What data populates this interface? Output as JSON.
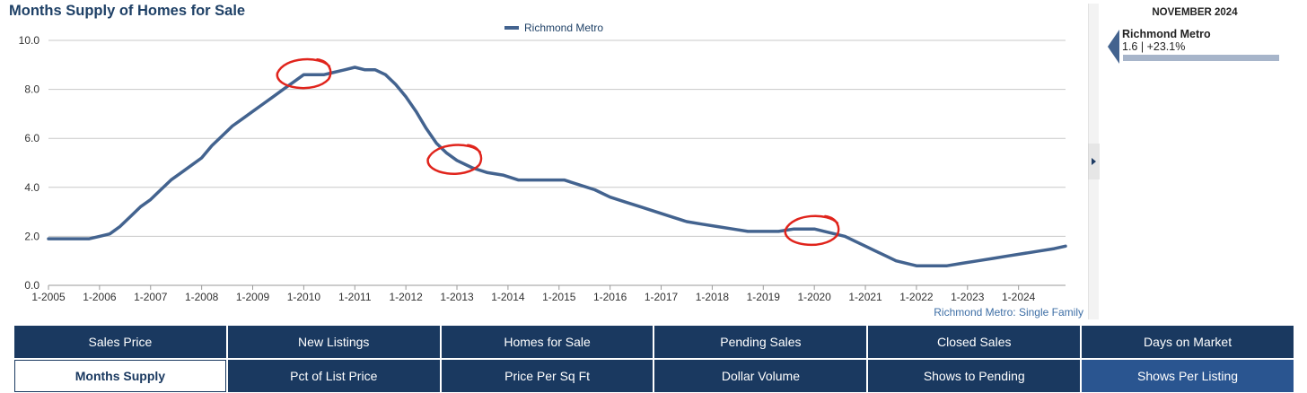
{
  "title": "Months Supply of Homes for Sale",
  "footer_note": "Richmond Metro: Single Family",
  "side_panel": {
    "date": "NOVEMBER 2024",
    "name": "Richmond Metro",
    "value": "1.6 | +23.1%",
    "marker_color": "#43638f"
  },
  "tabs": [
    {
      "label": "Sales Price",
      "state": "normal"
    },
    {
      "label": "New Listings",
      "state": "normal"
    },
    {
      "label": "Homes for Sale",
      "state": "normal"
    },
    {
      "label": "Pending Sales",
      "state": "normal"
    },
    {
      "label": "Closed Sales",
      "state": "normal"
    },
    {
      "label": "Days on Market",
      "state": "normal"
    },
    {
      "label": "Months Supply",
      "state": "active"
    },
    {
      "label": "Pct of List Price",
      "state": "normal"
    },
    {
      "label": "Price Per Sq Ft",
      "state": "normal"
    },
    {
      "label": "Dollar Volume",
      "state": "normal"
    },
    {
      "label": "Shows to Pending",
      "state": "normal"
    },
    {
      "label": "Shows Per Listing",
      "state": "highlight"
    }
  ],
  "chart_data": {
    "type": "line",
    "title": "Months Supply of Homes for Sale",
    "xlabel": "",
    "ylabel": "",
    "xlim": [
      2005.0,
      2024.92
    ],
    "ylim": [
      0,
      10
    ],
    "yticks": [
      0,
      2,
      4,
      6,
      8,
      10
    ],
    "ytick_labels": [
      "0.0",
      "2.0",
      "4.0",
      "6.0",
      "8.0",
      "10.0"
    ],
    "xticks": [
      2005,
      2006,
      2007,
      2008,
      2009,
      2010,
      2011,
      2012,
      2013,
      2014,
      2015,
      2016,
      2017,
      2018,
      2019,
      2020,
      2021,
      2022,
      2023,
      2024
    ],
    "xtick_labels": [
      "1-2005",
      "1-2006",
      "1-2007",
      "1-2008",
      "1-2009",
      "1-2010",
      "1-2011",
      "1-2012",
      "1-2013",
      "1-2014",
      "1-2015",
      "1-2016",
      "1-2017",
      "1-2018",
      "1-2019",
      "1-2020",
      "1-2021",
      "1-2022",
      "1-2023",
      "1-2024"
    ],
    "grid": "horizontal",
    "legend": "top-center",
    "series": [
      {
        "name": "Richmond Metro",
        "color": "#43638f",
        "x": [
          2005.0,
          2005.5,
          2005.8,
          2006.0,
          2006.2,
          2006.4,
          2006.6,
          2006.8,
          2007.0,
          2007.2,
          2007.4,
          2007.6,
          2007.8,
          2008.0,
          2008.2,
          2008.4,
          2008.6,
          2008.8,
          2009.0,
          2009.2,
          2009.4,
          2009.6,
          2009.8,
          2010.0,
          2010.2,
          2010.4,
          2010.6,
          2010.8,
          2011.0,
          2011.2,
          2011.4,
          2011.6,
          2011.8,
          2012.0,
          2012.2,
          2012.4,
          2012.6,
          2012.8,
          2013.0,
          2013.3,
          2013.6,
          2013.9,
          2014.2,
          2014.5,
          2014.8,
          2015.1,
          2015.4,
          2015.7,
          2016.0,
          2016.3,
          2016.6,
          2016.9,
          2017.2,
          2017.5,
          2017.8,
          2018.1,
          2018.4,
          2018.7,
          2019.0,
          2019.3,
          2019.6,
          2019.8,
          2020.0,
          2020.2,
          2020.4,
          2020.6,
          2020.8,
          2021.0,
          2021.2,
          2021.4,
          2021.6,
          2021.8,
          2022.0,
          2022.3,
          2022.6,
          2022.9,
          2023.2,
          2023.5,
          2023.8,
          2024.1,
          2024.4,
          2024.7,
          2024.92
        ],
        "values": [
          1.9,
          1.9,
          1.9,
          2.0,
          2.1,
          2.4,
          2.8,
          3.2,
          3.5,
          3.9,
          4.3,
          4.6,
          4.9,
          5.2,
          5.7,
          6.1,
          6.5,
          6.8,
          7.1,
          7.4,
          7.7,
          8.0,
          8.3,
          8.6,
          8.6,
          8.6,
          8.7,
          8.8,
          8.9,
          8.8,
          8.8,
          8.6,
          8.2,
          7.7,
          7.1,
          6.4,
          5.8,
          5.4,
          5.1,
          4.8,
          4.6,
          4.5,
          4.3,
          4.3,
          4.3,
          4.3,
          4.1,
          3.9,
          3.6,
          3.4,
          3.2,
          3.0,
          2.8,
          2.6,
          2.5,
          2.4,
          2.3,
          2.2,
          2.2,
          2.2,
          2.3,
          2.3,
          2.3,
          2.2,
          2.1,
          2.0,
          1.8,
          1.6,
          1.4,
          1.2,
          1.0,
          0.9,
          0.8,
          0.8,
          0.8,
          0.9,
          1.0,
          1.1,
          1.2,
          1.3,
          1.4,
          1.5,
          1.6
        ]
      }
    ],
    "annotations": [
      {
        "type": "circle",
        "color": "#e0241c",
        "x": 2010.0,
        "y": 8.6
      },
      {
        "type": "circle",
        "color": "#e0241c",
        "x": 2012.95,
        "y": 5.1
      },
      {
        "type": "circle",
        "color": "#e0241c",
        "x": 2019.95,
        "y": 2.2
      }
    ]
  }
}
